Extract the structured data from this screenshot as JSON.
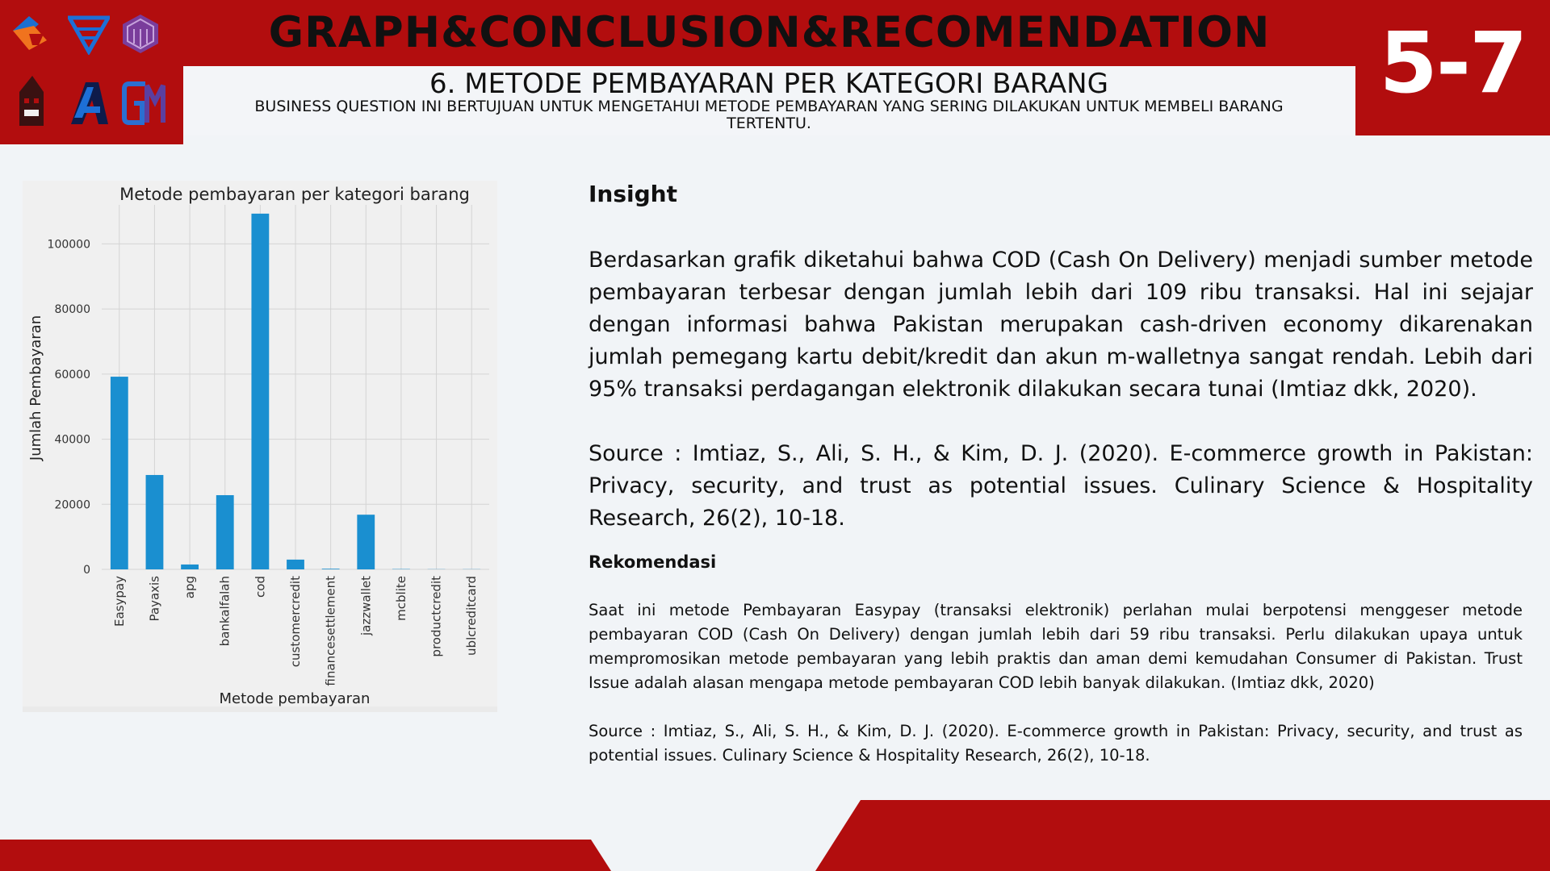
{
  "header": {
    "main_title": "GRAPH&CONCLUSION&RECOMENDATION",
    "section_number": "5-7",
    "sub_title": "6. METODE PEMBAYARAN PER KATEGORI BARANG",
    "business_question": "BUSINESS QUESTION INI BERTUJUAN UNTUK MENGETAHUI METODE PEMBAYARAN YANG SERING DILAKUKAN UNTUK MEMBELI BARANG TERTENTU."
  },
  "colors": {
    "brand_red": "#b20d0e",
    "bar_blue": "#1a8fd0",
    "background": "#f1f4f7"
  },
  "logos": [
    "orange-diamond-logo",
    "blue-triangle-logo",
    "purple-cube-logo",
    "dark-building-logo",
    "blue-a-logo",
    "blue-gm-logo"
  ],
  "chart_data": {
    "type": "bar",
    "title": "Metode pembayaran per kategori barang",
    "xlabel": "Metode pembayaran",
    "ylabel": "Jumlah Pembayaran",
    "categories": [
      "Easypay",
      "Payaxis",
      "apg",
      "bankalfalah",
      "cod",
      "customercredit",
      "financesettlement",
      "jazzwallet",
      "mcblite",
      "productcredit",
      "ublcreditcard"
    ],
    "values": [
      59200,
      29000,
      1500,
      22800,
      109300,
      3000,
      200,
      16800,
      100,
      50,
      50
    ],
    "yticks": [
      0,
      20000,
      40000,
      60000,
      80000,
      100000
    ],
    "ylim": [
      0,
      112000
    ],
    "grid": true
  },
  "insight": {
    "heading": "Insight",
    "body": "Berdasarkan grafik diketahui bahwa COD (Cash On Delivery) menjadi sumber metode pembayaran terbesar dengan jumlah lebih dari 109 ribu transaksi. Hal ini sejajar dengan informasi bahwa Pakistan merupakan cash-driven economy dikarenakan jumlah pemegang kartu debit/kredit dan akun m-walletnya sangat rendah. Lebih dari 95% transaksi perdagangan elektronik dilakukan secara tunai (Imtiaz dkk, 2020).",
    "source": "Source : Imtiaz, S., Ali, S. H., & Kim, D. J. (2020). E-commerce growth in Pakistan: Privacy, security, and trust as potential issues. Culinary Science & Hospitality Research, 26(2), 10-18."
  },
  "rekomendasi": {
    "heading": "Rekomendasi",
    "body": "Saat ini metode Pembayaran Easypay (transaksi elektronik) perlahan mulai berpotensi menggeser metode pembayaran COD (Cash On Delivery) dengan jumlah lebih dari 59 ribu transaksi. Perlu dilakukan upaya untuk mempromosikan metode pembayaran yang lebih praktis dan aman demi kemudahan Consumer di Pakistan. Trust Issue adalah alasan mengapa metode pembayaran COD lebih banyak dilakukan. (Imtiaz dkk, 2020)",
    "source": "Source : Imtiaz, S., Ali, S. H., & Kim, D. J. (2020). E-commerce growth in Pakistan: Privacy, security, and trust as potential issues. Culinary Science & Hospitality Research, 26(2), 10-18."
  }
}
